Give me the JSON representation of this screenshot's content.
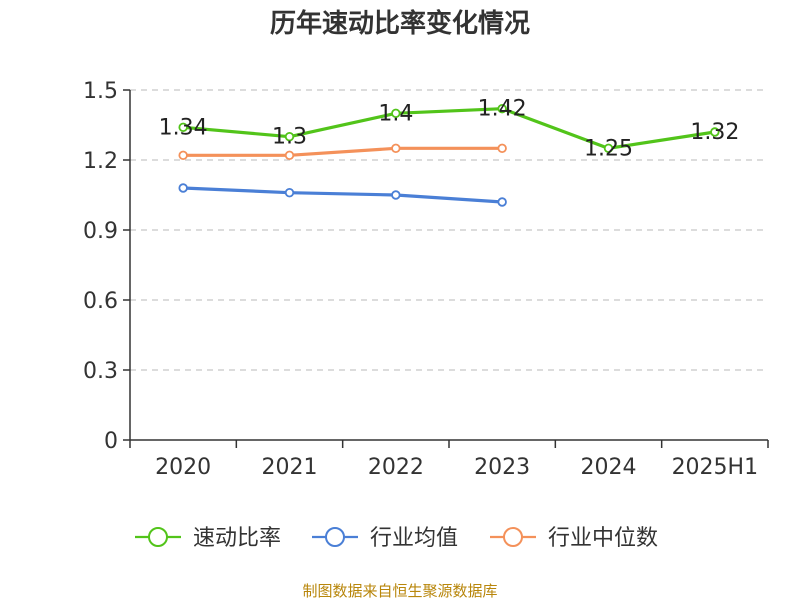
{
  "chart_data": {
    "type": "line",
    "title": "历年速动比率变化情况",
    "xlabel": "",
    "ylabel": "",
    "categories": [
      "2020",
      "2021",
      "2022",
      "2023",
      "2024",
      "2025H1"
    ],
    "ylim": [
      0,
      1.5
    ],
    "yticks": [
      "0",
      "0.3",
      "0.6",
      "0.9",
      "1.2",
      "1.5"
    ],
    "grid": true,
    "legend_position": "bottom",
    "series": [
      {
        "name": "速动比率",
        "color": "#52c41a",
        "values": [
          1.34,
          1.3,
          1.4,
          1.42,
          1.25,
          1.32
        ],
        "labels": [
          "1.34",
          "1.3",
          "1.4",
          "1.42",
          "1.25",
          "1.32"
        ]
      },
      {
        "name": "行业均值",
        "color": "#4a7fd6",
        "values": [
          1.08,
          1.06,
          1.05,
          1.02,
          null,
          null
        ]
      },
      {
        "name": "行业中位数",
        "color": "#f4915a",
        "values": [
          1.22,
          1.22,
          1.25,
          1.25,
          null,
          null
        ]
      }
    ]
  },
  "source": "制图数据来自恒生聚源数据库"
}
